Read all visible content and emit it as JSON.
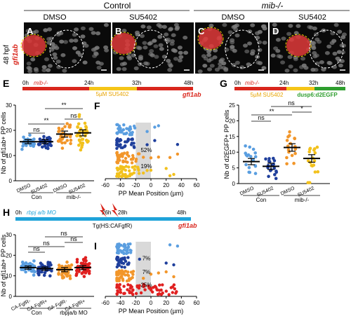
{
  "colors": {
    "red": "#d9261c",
    "yellow": "#f5c518",
    "cyan": "#1fa3d9",
    "green": "#2e9e2e",
    "light_blue": "#5a9ee0",
    "dark_blue": "#1f3f9c",
    "orange": "#f2962a",
    "yellow_dot": "#f2c11d",
    "red_dot": "#e02020",
    "gray_band": "#d9d9d9",
    "micro_bg": "#0a0a0a",
    "nuclei": "#7d7d7d",
    "signal": "#e03a3a"
  },
  "header": {
    "control": "Control",
    "mib": "mib-/-",
    "dmso": "DMSO",
    "su5402": "SU5402",
    "stage": "48 hpf",
    "gene": "gfi1ab"
  },
  "micro": {
    "letters": [
      "A",
      "B",
      "C",
      "D"
    ]
  },
  "panel_e": {
    "letter": "E",
    "mib": "mib-/-",
    "t0": "0h",
    "t24": "24h",
    "t32": "32h",
    "t48": "48h",
    "su_label": "5µM SU5402",
    "gene": "gfi1ab",
    "ylabel": "Nb of gfi1ab+ PP cells",
    "yticks": [
      "0",
      "10",
      "20",
      "30"
    ],
    "xticks": [
      "DMSO",
      "SU5402",
      "DMSO",
      "SU5402"
    ],
    "groups": [
      "Con",
      "mib-/-"
    ],
    "sig_top": "**",
    "sig_left": "ns",
    "sig_mid": "**",
    "sig_right": "ns"
  },
  "panel_f": {
    "letter": "F",
    "xlabel": "PP Mean Position (µm)",
    "xticks": [
      "-60",
      "-40",
      "-20",
      "0",
      "20",
      "40",
      "60"
    ],
    "pct1": "52%",
    "pct2": "19%"
  },
  "panel_g": {
    "letter": "G",
    "t0": "0h",
    "t24": "24h",
    "t32": "32h",
    "t48": "48h",
    "mib": "mib-/-",
    "su_label": "5µM SU5402",
    "tg_label": "dusp6:d2EGFP",
    "ylabel": "Nb of d2EGFP+ PP cells",
    "yticks": [
      "0",
      "5",
      "10",
      "15",
      "20",
      "25"
    ],
    "xticks": [
      "DMSO",
      "SU5402",
      "DMSO",
      "SU5402"
    ],
    "groups": [
      "Con",
      "mib-/-"
    ],
    "sig_top": "ns",
    "sig_left": "ns",
    "sig_mid": "**",
    "sig_right": "*"
  },
  "panel_h": {
    "letter": "H",
    "t0": "0h",
    "mo": "rbpj a/b MO",
    "t26": "26h",
    "t28": "28h",
    "t48": "48h",
    "tg": "Tg(HS:CAFgfR)",
    "gene": "gfi1ab",
    "ylabel": "Nb of gfi1ab+ PP cells",
    "yticks": [
      "0",
      "10",
      "20",
      "30"
    ],
    "xticks": [
      "CA-FgfR-",
      "CA-FgfR+",
      "CA-FgfR-",
      "CA-FgfR+"
    ],
    "groups": [
      "Con",
      "rbpja/b MO"
    ],
    "sig_top": "ns",
    "sig_left": "ns",
    "sig_mid": "ns",
    "sig_right": "ns"
  },
  "panel_i": {
    "letter": "I",
    "xlabel": "PP Mean Position (µm)",
    "xticks": [
      "-60",
      "-40",
      "-20",
      "0",
      "20",
      "40",
      "60"
    ],
    "pct1": "7%",
    "pct2": "7%",
    "pct3": "25%"
  },
  "chart_data": [
    {
      "panel": "E",
      "type": "scatter",
      "ylabel": "Nb of gfi1ab+ PP cells",
      "ylim": [
        0,
        30
      ],
      "categories": [
        "DMSO",
        "SU5402",
        "DMSO",
        "SU5402"
      ],
      "groups": [
        "Con",
        "mib-/-"
      ],
      "means": [
        15.5,
        15.5,
        18.5,
        19
      ],
      "sem": [
        0.8,
        0.8,
        1.2,
        1.2
      ]
    },
    {
      "panel": "F",
      "type": "scatter",
      "xlabel": "PP Mean Position (µm)",
      "xlim": [
        -60,
        60
      ],
      "shaded_band": [
        -20,
        0
      ],
      "percentages": [
        "52%",
        "19%"
      ],
      "rows": [
        {
          "color": "light_blue",
          "x_range": [
            -45,
            -20
          ],
          "outliers": [
            -5,
            5,
            10
          ]
        },
        {
          "color": "dark_blue",
          "x_range": [
            -45,
            -20
          ],
          "outliers": [
            -5,
            5,
            35
          ]
        },
        {
          "color": "orange",
          "x_range": [
            -45,
            -15
          ],
          "outliers": [
            -10,
            0,
            10,
            25,
            35
          ]
        },
        {
          "color": "yellow_dot",
          "x_range": [
            -45,
            -15
          ],
          "outliers": [
            -10,
            -5,
            0,
            20,
            25,
            30
          ]
        }
      ]
    },
    {
      "panel": "G",
      "type": "scatter",
      "ylabel": "Nb of d2EGFP+ PP cells",
      "ylim": [
        0,
        25
      ],
      "categories": [
        "DMSO",
        "SU5402",
        "DMSO",
        "SU5402"
      ],
      "groups": [
        "Con",
        "mib-/-"
      ],
      "means": [
        7,
        5.5,
        11.5,
        8
      ],
      "sem": [
        1,
        1,
        1.2,
        1.2
      ]
    },
    {
      "panel": "H",
      "type": "scatter",
      "ylabel": "Nb of gfi1ab+ PP cells",
      "ylim": [
        0,
        30
      ],
      "categories": [
        "CA-FgfR-",
        "CA-FgfR+",
        "CA-FgfR-",
        "CA-FgfR+"
      ],
      "groups": [
        "Con",
        "rbpja/b MO"
      ],
      "means": [
        14,
        13.5,
        13,
        14
      ],
      "sem": [
        0.8,
        0.8,
        1,
        1
      ]
    },
    {
      "panel": "I",
      "type": "scatter",
      "xlabel": "PP Mean Position (µm)",
      "xlim": [
        -60,
        60
      ],
      "shaded_band": [
        -20,
        0
      ],
      "percentages": [
        "7%",
        "7%",
        "25%"
      ],
      "rows": [
        {
          "color": "light_blue",
          "x_range": [
            -45,
            -25
          ],
          "outliers": [
            25,
            35
          ]
        },
        {
          "color": "dark_blue",
          "x_range": [
            -45,
            -25
          ],
          "outliers": [
            -15,
            20,
            30
          ]
        },
        {
          "color": "orange",
          "x_range": [
            -45,
            -20
          ],
          "outliers": [
            -10,
            0,
            10,
            20,
            30
          ]
        },
        {
          "color": "red_dot",
          "x_range": [
            -45,
            35
          ],
          "outliers": []
        }
      ]
    }
  ]
}
